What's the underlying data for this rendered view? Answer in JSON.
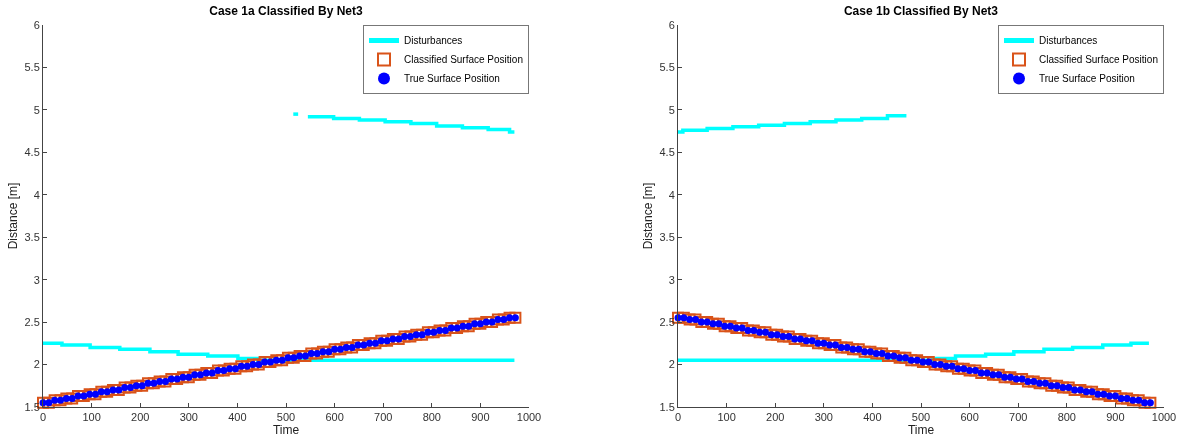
{
  "chart_data": [
    {
      "type": "scatter",
      "title": "Case 1a Classified By Net3",
      "xlabel": "Time",
      "ylabel": "Distance [m]",
      "xlim": [
        0,
        1000
      ],
      "xticks": [
        0,
        100,
        200,
        300,
        400,
        500,
        600,
        700,
        800,
        900,
        1000
      ],
      "ylim": [
        1.5,
        6
      ],
      "yticks": [
        1.5,
        2,
        2.5,
        3,
        3.5,
        4,
        4.5,
        5,
        5.5,
        6
      ],
      "grid": false,
      "legend": "top right",
      "x": [
        0,
        12,
        24,
        36,
        48,
        60,
        72,
        84,
        96,
        108,
        120,
        132,
        144,
        156,
        168,
        180,
        192,
        204,
        216,
        228,
        240,
        252,
        264,
        276,
        288,
        300,
        312,
        324,
        336,
        348,
        360,
        372,
        384,
        396,
        408,
        420,
        432,
        444,
        456,
        468,
        480,
        492,
        504,
        516,
        528,
        540,
        552,
        564,
        576,
        588,
        600,
        612,
        624,
        636,
        648,
        660,
        672,
        684,
        696,
        708,
        720,
        732,
        744,
        756,
        768,
        780,
        792,
        804,
        816,
        828,
        840,
        852,
        864,
        876,
        888,
        900,
        912,
        924,
        936,
        948,
        960,
        972
      ],
      "series": [
        {
          "name": "Disturbances",
          "type": "step",
          "color": "#00ffff",
          "x": [
            0,
            39,
            97,
            158,
            220,
            278,
            339,
            401,
            442,
            970
          ],
          "values": [
            2.25,
            2.23,
            2.2,
            2.18,
            2.15,
            2.12,
            2.1,
            2.07,
            2.05,
            2.05
          ]
        },
        {
          "type": "step",
          "color": "#00ffff",
          "x": [
            515,
            525
          ],
          "values": [
            4.95,
            4.95
          ]
        },
        {
          "type": "step",
          "color": "#00ffff",
          "x": [
            545,
            598,
            651,
            704,
            757,
            810,
            863,
            916,
            960,
            970
          ],
          "values": [
            4.92,
            4.9,
            4.88,
            4.86,
            4.84,
            4.81,
            4.79,
            4.77,
            4.74,
            4.74
          ]
        },
        {
          "name": "Classified Surface Position",
          "marker": "square",
          "color": "#d95319",
          "values": [
            1.55,
            1.55,
            1.58,
            1.58,
            1.6,
            1.6,
            1.63,
            1.63,
            1.65,
            1.65,
            1.68,
            1.68,
            1.7,
            1.7,
            1.73,
            1.73,
            1.75,
            1.75,
            1.78,
            1.78,
            1.8,
            1.8,
            1.83,
            1.83,
            1.85,
            1.85,
            1.88,
            1.88,
            1.9,
            1.9,
            1.93,
            1.93,
            1.95,
            1.95,
            1.98,
            1.98,
            2,
            2,
            2.03,
            2.03,
            2.05,
            2.05,
            2.08,
            2.08,
            2.1,
            2.1,
            2.13,
            2.13,
            2.15,
            2.15,
            2.18,
            2.18,
            2.2,
            2.2,
            2.23,
            2.23,
            2.25,
            2.25,
            2.28,
            2.28,
            2.3,
            2.3,
            2.33,
            2.33,
            2.35,
            2.35,
            2.38,
            2.38,
            2.4,
            2.4,
            2.43,
            2.43,
            2.45,
            2.45,
            2.48,
            2.48,
            2.5,
            2.5,
            2.53,
            2.53,
            2.55,
            2.55
          ]
        },
        {
          "name": "True Surface Position",
          "marker": "circle",
          "color": "#0000ff",
          "values": [
            1.55,
            1.55,
            1.58,
            1.58,
            1.6,
            1.6,
            1.63,
            1.63,
            1.65,
            1.65,
            1.68,
            1.68,
            1.7,
            1.7,
            1.73,
            1.73,
            1.75,
            1.75,
            1.78,
            1.78,
            1.8,
            1.8,
            1.83,
            1.83,
            1.85,
            1.85,
            1.88,
            1.88,
            1.9,
            1.9,
            1.93,
            1.93,
            1.95,
            1.95,
            1.98,
            1.98,
            2,
            2,
            2.03,
            2.03,
            2.05,
            2.05,
            2.08,
            2.08,
            2.1,
            2.1,
            2.13,
            2.13,
            2.15,
            2.15,
            2.18,
            2.18,
            2.2,
            2.2,
            2.23,
            2.23,
            2.25,
            2.25,
            2.28,
            2.28,
            2.3,
            2.3,
            2.33,
            2.33,
            2.35,
            2.35,
            2.38,
            2.38,
            2.4,
            2.4,
            2.43,
            2.43,
            2.45,
            2.45,
            2.48,
            2.48,
            2.5,
            2.5,
            2.53,
            2.53,
            2.55,
            2.55
          ]
        }
      ]
    },
    {
      "type": "scatter",
      "title": "Case 1b Classified By Net3",
      "xlabel": "Time",
      "ylabel": "Distance [m]",
      "xlim": [
        0,
        1000
      ],
      "xticks": [
        0,
        100,
        200,
        300,
        400,
        500,
        600,
        700,
        800,
        900,
        1000
      ],
      "ylim": [
        1.5,
        6
      ],
      "yticks": [
        1.5,
        2,
        2.5,
        3,
        3.5,
        4,
        4.5,
        5,
        5.5,
        6
      ],
      "grid": false,
      "legend": "top right",
      "x": [
        0,
        12,
        24,
        36,
        48,
        60,
        72,
        84,
        96,
        108,
        120,
        132,
        144,
        156,
        168,
        180,
        192,
        204,
        216,
        228,
        240,
        252,
        264,
        276,
        288,
        300,
        312,
        324,
        336,
        348,
        360,
        372,
        384,
        396,
        408,
        420,
        432,
        444,
        456,
        468,
        480,
        492,
        504,
        516,
        528,
        540,
        552,
        564,
        576,
        588,
        600,
        612,
        624,
        636,
        648,
        660,
        672,
        684,
        696,
        708,
        720,
        732,
        744,
        756,
        768,
        780,
        792,
        804,
        816,
        828,
        840,
        852,
        864,
        876,
        888,
        900,
        912,
        924,
        936,
        948,
        960,
        972
      ],
      "series": [
        {
          "name": "Disturbances",
          "type": "step",
          "color": "#00ffff",
          "x": [
            0,
            524,
            571,
            633,
            691,
            753,
            812,
            874,
            932,
            969
          ],
          "values": [
            2.05,
            2.07,
            2.1,
            2.12,
            2.15,
            2.18,
            2.2,
            2.23,
            2.25,
            2.25
          ]
        },
        {
          "type": "step",
          "color": "#00ffff",
          "x": [
            0,
            10,
            60,
            113,
            166,
            219,
            272,
            325,
            378,
            431,
            470
          ],
          "values": [
            4.74,
            4.76,
            4.78,
            4.8,
            4.82,
            4.84,
            4.86,
            4.88,
            4.9,
            4.93,
            4.93
          ]
        },
        {
          "name": "Classified Surface Position",
          "marker": "square",
          "color": "#d95319",
          "values": [
            2.55,
            2.55,
            2.53,
            2.53,
            2.5,
            2.5,
            2.48,
            2.48,
            2.45,
            2.45,
            2.43,
            2.43,
            2.4,
            2.4,
            2.38,
            2.38,
            2.35,
            2.35,
            2.33,
            2.33,
            2.3,
            2.3,
            2.28,
            2.28,
            2.25,
            2.25,
            2.23,
            2.23,
            2.2,
            2.2,
            2.18,
            2.18,
            2.15,
            2.15,
            2.13,
            2.13,
            2.1,
            2.1,
            2.08,
            2.08,
            2.05,
            2.05,
            2.03,
            2.03,
            2,
            2,
            1.98,
            1.98,
            1.95,
            1.95,
            1.93,
            1.93,
            1.9,
            1.9,
            1.88,
            1.88,
            1.85,
            1.85,
            1.83,
            1.83,
            1.8,
            1.8,
            1.78,
            1.78,
            1.75,
            1.75,
            1.73,
            1.73,
            1.7,
            1.7,
            1.68,
            1.68,
            1.65,
            1.65,
            1.63,
            1.63,
            1.6,
            1.6,
            1.58,
            1.58,
            1.55,
            1.55
          ]
        },
        {
          "name": "True Surface Position",
          "marker": "circle",
          "color": "#0000ff",
          "values": [
            2.55,
            2.55,
            2.53,
            2.53,
            2.5,
            2.5,
            2.48,
            2.48,
            2.45,
            2.45,
            2.43,
            2.43,
            2.4,
            2.4,
            2.38,
            2.38,
            2.35,
            2.35,
            2.33,
            2.33,
            2.3,
            2.3,
            2.28,
            2.28,
            2.25,
            2.25,
            2.23,
            2.23,
            2.2,
            2.2,
            2.18,
            2.18,
            2.15,
            2.15,
            2.13,
            2.13,
            2.1,
            2.1,
            2.08,
            2.08,
            2.05,
            2.05,
            2.03,
            2.03,
            2,
            2,
            1.98,
            1.98,
            1.95,
            1.95,
            1.93,
            1.93,
            1.9,
            1.9,
            1.88,
            1.88,
            1.85,
            1.85,
            1.83,
            1.83,
            1.8,
            1.8,
            1.78,
            1.78,
            1.75,
            1.75,
            1.73,
            1.73,
            1.7,
            1.7,
            1.68,
            1.68,
            1.65,
            1.65,
            1.63,
            1.63,
            1.6,
            1.6,
            1.58,
            1.58,
            1.55,
            1.55
          ]
        }
      ]
    }
  ]
}
